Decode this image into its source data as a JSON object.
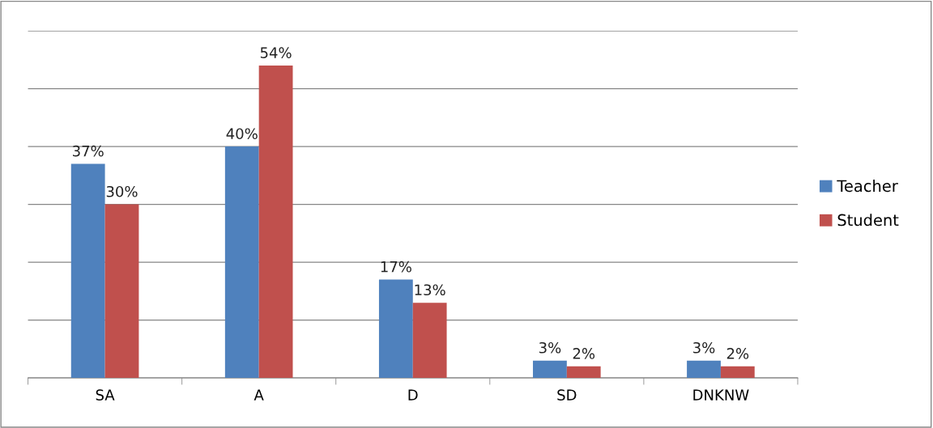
{
  "chart_data": {
    "type": "bar",
    "categories": [
      "SA",
      "A",
      "D",
      "SD",
      "DNKNW"
    ],
    "series": [
      {
        "name": "Teacher",
        "color": "#4f81bd",
        "values": [
          37,
          40,
          17,
          3,
          3
        ],
        "value_labels": [
          "37%",
          "40%",
          "17%",
          "3%",
          "3%"
        ]
      },
      {
        "name": "Student",
        "color": "#c0504d",
        "values": [
          30,
          54,
          13,
          2,
          2
        ],
        "value_labels": [
          "30%",
          "54%",
          "13%",
          "2%",
          "2%"
        ]
      }
    ],
    "ylim": [
      0,
      60
    ],
    "yticks": [
      {
        "value": 0,
        "label": null
      },
      {
        "value": 10,
        "label": null
      },
      {
        "value": 20,
        "label": null
      },
      {
        "value": 30,
        "label": null
      },
      {
        "value": 40,
        "label": null
      },
      {
        "value": 50,
        "label": null
      },
      {
        "value": 60,
        "label": null
      }
    ],
    "grid": "y",
    "legend": "right",
    "tick_labels": "x"
  }
}
